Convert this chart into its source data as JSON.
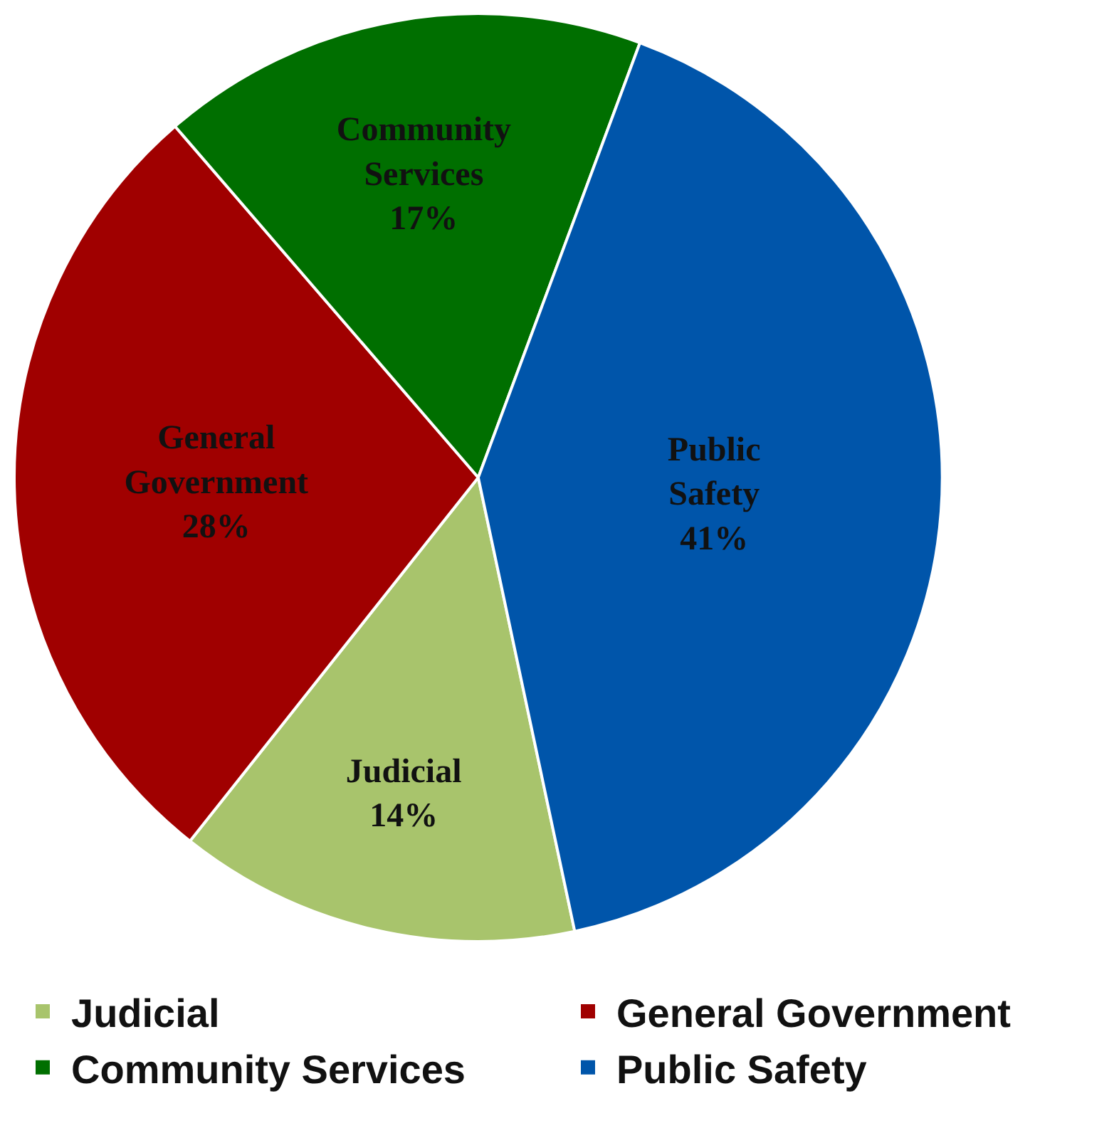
{
  "chart_data": {
    "type": "pie",
    "categories": [
      "Judicial",
      "General Government",
      "Community Services",
      "Public Safety"
    ],
    "values": [
      14,
      28,
      17,
      41
    ],
    "colors": [
      "#a8c46c",
      "#a00000",
      "#006f00",
      "#0055aa"
    ],
    "value_labels": [
      "14%",
      "28%",
      "17%",
      "41%"
    ],
    "legend": "bottom"
  }
}
